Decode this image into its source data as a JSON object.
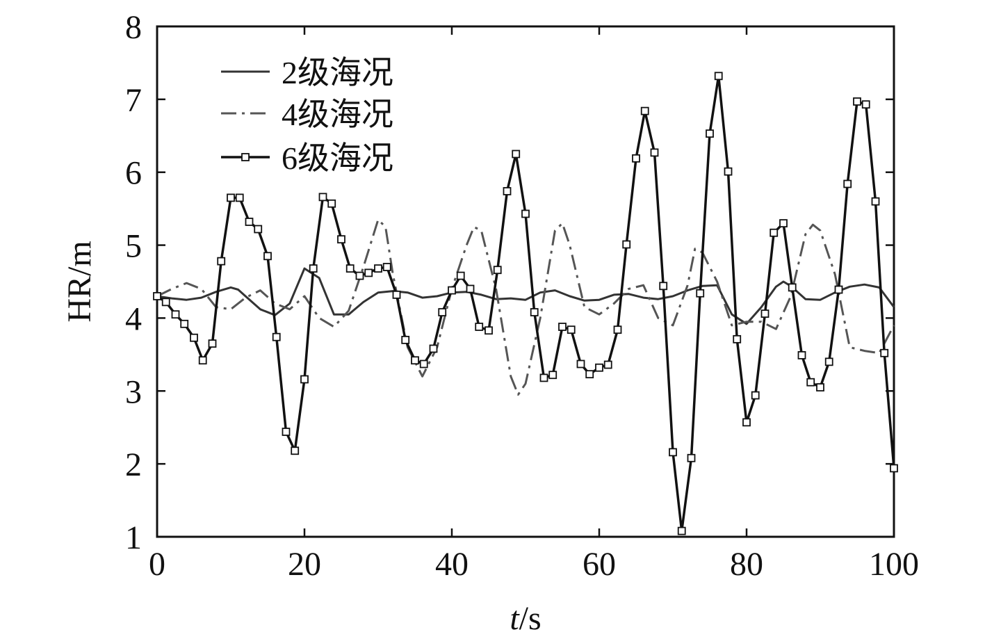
{
  "chart_data": {
    "type": "line",
    "xlabel_italic": "t",
    "xlabel_unit": "/s",
    "ylabel": "HR/m",
    "xlim": [
      0,
      100
    ],
    "ylim": [
      1,
      8
    ],
    "x_ticks": [
      "0",
      "20",
      "40",
      "60",
      "80",
      "100"
    ],
    "y_ticks": [
      "1",
      "2",
      "3",
      "4",
      "5",
      "6",
      "7",
      "8"
    ],
    "grid": false,
    "legend_position": "top-left",
    "series": [
      {
        "name": "2级海况",
        "style": "solid",
        "color": "#333333",
        "x": [
          0,
          2,
          4,
          6,
          8,
          10,
          11,
          12,
          14,
          16,
          18,
          20,
          22,
          24,
          26,
          28,
          30,
          32,
          34,
          36,
          38,
          40,
          42,
          44,
          46,
          48,
          50,
          52,
          54,
          56,
          58,
          60,
          62,
          64,
          66,
          68,
          70,
          72,
          74,
          76,
          78,
          80,
          82,
          84,
          85,
          86,
          88,
          90,
          92,
          94,
          96,
          98,
          100
        ],
        "values": [
          4.3,
          4.27,
          4.25,
          4.28,
          4.36,
          4.42,
          4.39,
          4.3,
          4.12,
          4.04,
          4.2,
          4.68,
          4.55,
          4.05,
          4.05,
          4.22,
          4.35,
          4.37,
          4.35,
          4.28,
          4.3,
          4.35,
          4.36,
          4.32,
          4.26,
          4.27,
          4.25,
          4.35,
          4.38,
          4.3,
          4.24,
          4.25,
          4.32,
          4.33,
          4.28,
          4.26,
          4.3,
          4.38,
          4.44,
          4.45,
          4.05,
          3.92,
          4.15,
          4.43,
          4.5,
          4.44,
          4.26,
          4.25,
          4.35,
          4.43,
          4.46,
          4.42,
          4.15
        ]
      },
      {
        "name": "4级海况",
        "style": "dashdot",
        "color": "#555555",
        "x": [
          0,
          2,
          4,
          6,
          8,
          10,
          12,
          14,
          16,
          18,
          20,
          22,
          24,
          26,
          28,
          30,
          31,
          32,
          34,
          36,
          38,
          40,
          42,
          43,
          44,
          46,
          48,
          49,
          50,
          52,
          54,
          55,
          56,
          58,
          60,
          62,
          64,
          66,
          68,
          70,
          72,
          73,
          74,
          76,
          78,
          80,
          82,
          84,
          86,
          88,
          89,
          90,
          92,
          94,
          96,
          98,
          100
        ],
        "values": [
          4.3,
          4.4,
          4.48,
          4.4,
          4.15,
          4.12,
          4.28,
          4.38,
          4.2,
          4.12,
          4.3,
          4.0,
          3.88,
          4.1,
          4.7,
          5.35,
          5.25,
          4.6,
          3.6,
          3.2,
          3.6,
          4.4,
          5.0,
          5.25,
          5.2,
          4.4,
          3.2,
          2.95,
          3.1,
          4.0,
          5.2,
          5.3,
          5.0,
          4.15,
          4.05,
          4.2,
          4.4,
          4.45,
          4.0,
          3.9,
          4.45,
          4.95,
          4.9,
          4.5,
          3.9,
          3.95,
          3.95,
          3.85,
          4.3,
          5.15,
          5.28,
          5.2,
          4.6,
          3.6,
          3.55,
          3.52,
          3.9
        ]
      },
      {
        "name": "6级海况",
        "style": "solid-marker",
        "color": "#111111",
        "x": [
          0,
          1.2,
          2.5,
          3.7,
          5.0,
          6.2,
          7.5,
          8.7,
          10,
          11.2,
          12.5,
          13.7,
          15,
          16.2,
          17.5,
          18.7,
          20,
          21.2,
          22.5,
          23.7,
          25,
          26.2,
          27.5,
          28.7,
          30,
          31.2,
          32.5,
          33.7,
          35,
          36.2,
          37.5,
          38.7,
          40,
          41.2,
          42.5,
          43.7,
          45,
          46.2,
          47.5,
          48.7,
          50,
          51.2,
          52.5,
          53.7,
          55,
          56.2,
          57.5,
          58.7,
          60,
          61.2,
          62.5,
          63.7,
          65,
          66.2,
          67.5,
          68.7,
          70,
          71.2,
          72.5,
          73.7,
          75,
          76.2,
          77.5,
          78.7,
          80,
          81.2,
          82.5,
          83.7,
          85,
          86.2,
          87.5,
          88.7,
          90,
          91.2,
          92.5,
          93.7,
          95,
          96.2,
          97.5,
          98.7,
          100
        ],
        "values": [
          4.3,
          4.22,
          4.05,
          3.92,
          3.73,
          3.42,
          3.65,
          4.78,
          5.65,
          5.65,
          5.32,
          5.22,
          4.85,
          3.74,
          2.44,
          2.18,
          3.16,
          4.68,
          5.66,
          5.57,
          5.08,
          4.68,
          4.58,
          4.62,
          4.68,
          4.7,
          4.32,
          3.7,
          3.42,
          3.37,
          3.58,
          4.08,
          4.38,
          4.58,
          4.4,
          3.88,
          3.83,
          4.66,
          5.74,
          6.25,
          5.43,
          4.08,
          3.18,
          3.22,
          3.88,
          3.84,
          3.37,
          3.23,
          3.32,
          3.36,
          3.84,
          5.01,
          6.19,
          6.84,
          6.27,
          4.44,
          2.16,
          1.08,
          2.08,
          4.34,
          6.53,
          7.32,
          6.01,
          3.71,
          2.57,
          2.94,
          4.06,
          5.17,
          5.3,
          4.42,
          3.49,
          3.12,
          3.05,
          3.4,
          4.39,
          5.84,
          6.97,
          6.93,
          5.6,
          3.52,
          1.94
        ]
      }
    ]
  }
}
